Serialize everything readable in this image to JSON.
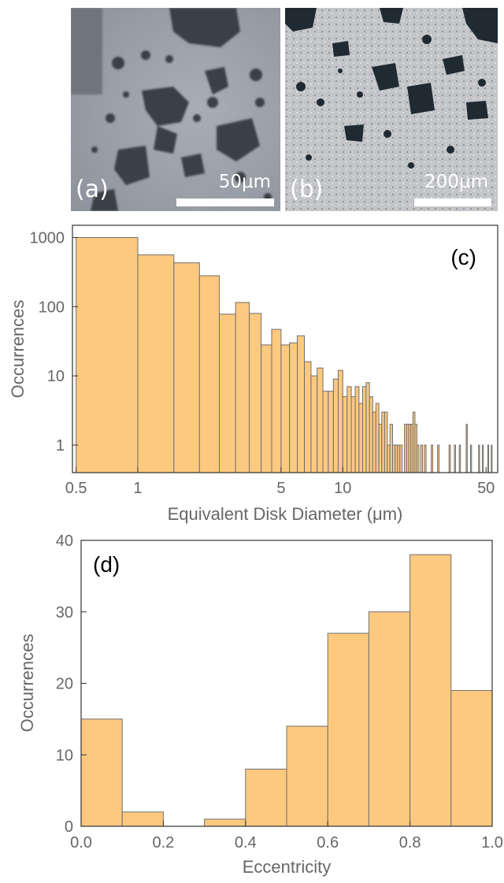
{
  "panels": {
    "a": {
      "label": "(a)",
      "scale_bar": "50μm"
    },
    "b": {
      "label": "(b)",
      "scale_bar": "200μm"
    }
  },
  "colors": {
    "bar_fill": "#FDC97F",
    "bar_stroke": "#6F6F6F",
    "frame": "#333333",
    "tick_text": "#666666"
  },
  "chart_data": [
    {
      "panel": "(c)",
      "type": "bar",
      "xlabel": "Equivalent Disk Diameter (μm)",
      "ylabel": "Occurrences",
      "x_scale": "log",
      "y_scale": "log",
      "xlim": [
        0.48,
        57
      ],
      "ylim": [
        0.4,
        1500
      ],
      "x_ticks": [
        0.5,
        1,
        5,
        10,
        50
      ],
      "y_ticks": [
        1,
        10,
        100,
        1000
      ],
      "bins": [
        {
          "x0": 0.5,
          "x1": 1.0,
          "y": 1000
        },
        {
          "x0": 1.0,
          "x1": 1.5,
          "y": 560
        },
        {
          "x0": 1.5,
          "x1": 2.0,
          "y": 430
        },
        {
          "x0": 2.0,
          "x1": 2.5,
          "y": 280
        },
        {
          "x0": 2.5,
          "x1": 3.0,
          "y": 78
        },
        {
          "x0": 3.0,
          "x1": 3.5,
          "y": 115
        },
        {
          "x0": 3.5,
          "x1": 4.0,
          "y": 80
        },
        {
          "x0": 4.0,
          "x1": 4.5,
          "y": 28
        },
        {
          "x0": 4.5,
          "x1": 5.0,
          "y": 47
        },
        {
          "x0": 5.0,
          "x1": 5.5,
          "y": 28
        },
        {
          "x0": 5.5,
          "x1": 6.0,
          "y": 30
        },
        {
          "x0": 6.0,
          "x1": 6.5,
          "y": 38
        },
        {
          "x0": 6.5,
          "x1": 7.0,
          "y": 16
        },
        {
          "x0": 7.0,
          "x1": 7.5,
          "y": 10
        },
        {
          "x0": 7.5,
          "x1": 8.0,
          "y": 13
        },
        {
          "x0": 8.0,
          "x1": 8.5,
          "y": 6
        },
        {
          "x0": 8.5,
          "x1": 9.0,
          "y": 6
        },
        {
          "x0": 9.0,
          "x1": 9.5,
          "y": 9
        },
        {
          "x0": 9.5,
          "x1": 10.0,
          "y": 12
        },
        {
          "x0": 10.0,
          "x1": 10.5,
          "y": 5
        },
        {
          "x0": 10.5,
          "x1": 11.0,
          "y": 7
        },
        {
          "x0": 11.0,
          "x1": 11.5,
          "y": 5
        },
        {
          "x0": 11.5,
          "x1": 12.0,
          "y": 7
        },
        {
          "x0": 12.0,
          "x1": 12.5,
          "y": 4
        },
        {
          "x0": 12.5,
          "x1": 13.0,
          "y": 7
        },
        {
          "x0": 13.0,
          "x1": 13.5,
          "y": 8
        },
        {
          "x0": 13.5,
          "x1": 14.0,
          "y": 5
        },
        {
          "x0": 14.0,
          "x1": 14.5,
          "y": 3
        },
        {
          "x0": 14.5,
          "x1": 15.0,
          "y": 4
        },
        {
          "x0": 15.0,
          "x1": 15.5,
          "y": 2
        },
        {
          "x0": 15.5,
          "x1": 16.0,
          "y": 3
        },
        {
          "x0": 16.0,
          "x1": 16.5,
          "y": 3
        },
        {
          "x0": 16.5,
          "x1": 17.0,
          "y": 1
        },
        {
          "x0": 17.0,
          "x1": 17.5,
          "y": 2
        },
        {
          "x0": 17.5,
          "x1": 18.0,
          "y": 1
        },
        {
          "x0": 18.0,
          "x1": 18.5,
          "y": 1
        },
        {
          "x0": 18.5,
          "x1": 19.0,
          "y": 1
        },
        {
          "x0": 19.0,
          "x1": 19.5,
          "y": 1
        },
        {
          "x0": 20.0,
          "x1": 20.5,
          "y": 2
        },
        {
          "x0": 20.5,
          "x1": 21.0,
          "y": 2
        },
        {
          "x0": 21.0,
          "x1": 21.5,
          "y": 2
        },
        {
          "x0": 21.5,
          "x1": 22.0,
          "y": 2
        },
        {
          "x0": 22.0,
          "x1": 22.5,
          "y": 3
        },
        {
          "x0": 22.5,
          "x1": 23.0,
          "y": 2
        },
        {
          "x0": 23.0,
          "x1": 23.5,
          "y": 1
        },
        {
          "x0": 24.0,
          "x1": 24.5,
          "y": 1
        },
        {
          "x0": 25.0,
          "x1": 25.5,
          "y": 1
        },
        {
          "x0": 27.0,
          "x1": 27.5,
          "y": 1
        },
        {
          "x0": 29.0,
          "x1": 29.5,
          "y": 1
        },
        {
          "x0": 33.0,
          "x1": 33.5,
          "y": 1
        },
        {
          "x0": 35.0,
          "x1": 35.5,
          "y": 1
        },
        {
          "x0": 37.0,
          "x1": 37.5,
          "y": 1
        },
        {
          "x0": 40.0,
          "x1": 40.5,
          "y": 2
        },
        {
          "x0": 42.0,
          "x1": 42.5,
          "y": 1
        },
        {
          "x0": 46.0,
          "x1": 46.5,
          "y": 1
        },
        {
          "x0": 48.0,
          "x1": 48.5,
          "y": 1
        },
        {
          "x0": 51.0,
          "x1": 51.5,
          "y": 1
        },
        {
          "x0": 53.0,
          "x1": 53.5,
          "y": 1
        }
      ]
    },
    {
      "panel": "(d)",
      "type": "bar",
      "xlabel": "Eccentricity",
      "ylabel": "Occurrences",
      "xlim": [
        0,
        1
      ],
      "ylim": [
        0,
        40
      ],
      "x_ticks": [
        "0.0",
        "0.2",
        "0.4",
        "0.6",
        "0.8",
        "1.0"
      ],
      "y_ticks": [
        0,
        10,
        20,
        30,
        40
      ],
      "bins": [
        {
          "x0": 0.0,
          "x1": 0.1,
          "y": 15
        },
        {
          "x0": 0.1,
          "x1": 0.2,
          "y": 2
        },
        {
          "x0": 0.2,
          "x1": 0.3,
          "y": 0
        },
        {
          "x0": 0.3,
          "x1": 0.4,
          "y": 1
        },
        {
          "x0": 0.4,
          "x1": 0.5,
          "y": 8
        },
        {
          "x0": 0.5,
          "x1": 0.6,
          "y": 14
        },
        {
          "x0": 0.6,
          "x1": 0.7,
          "y": 27
        },
        {
          "x0": 0.7,
          "x1": 0.8,
          "y": 30
        },
        {
          "x0": 0.8,
          "x1": 0.9,
          "y": 38
        },
        {
          "x0": 0.9,
          "x1": 1.0,
          "y": 19
        }
      ]
    }
  ]
}
